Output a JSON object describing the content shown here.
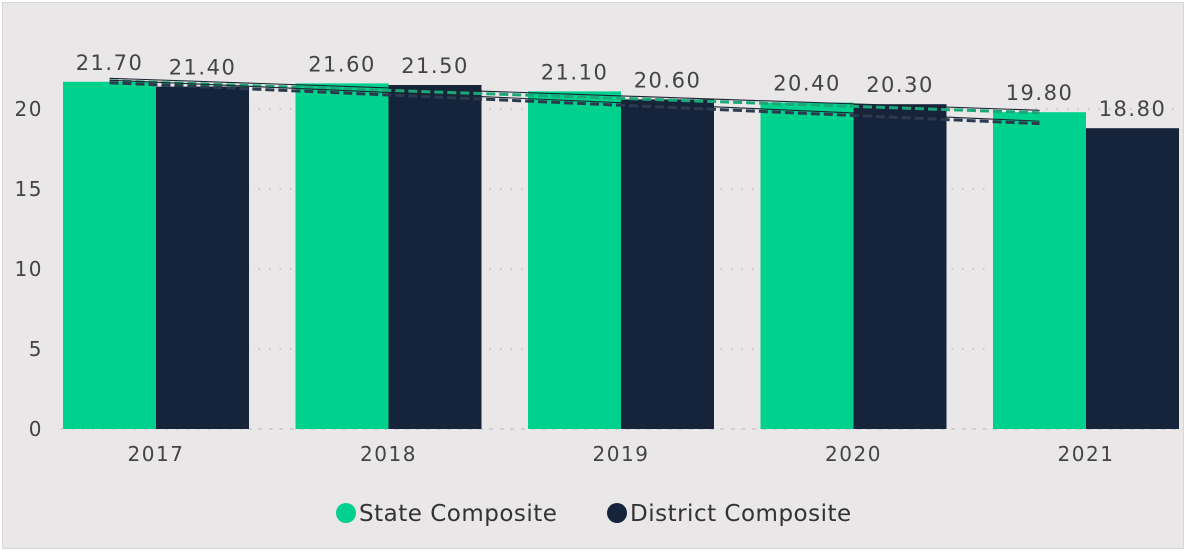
{
  "colors": {
    "state": "#00d18c",
    "district": "#15243b",
    "state_trend": "#1aa878",
    "district_trend": "#2b3a4f",
    "grid": "#b8b6b6",
    "background": "#e9e7e7"
  },
  "chart_data": {
    "type": "bar",
    "categories": [
      "2017",
      "2018",
      "2019",
      "2020",
      "2021"
    ],
    "series": [
      {
        "name": "State Composite",
        "values": [
          21.7,
          21.6,
          21.1,
          20.4,
          19.8
        ],
        "labels": [
          "21.70",
          "21.60",
          "21.10",
          "20.40",
          "19.80"
        ],
        "color": "#00d18c"
      },
      {
        "name": "District Composite",
        "values": [
          21.4,
          21.5,
          20.6,
          20.3,
          18.8
        ],
        "labels": [
          "21.40",
          "21.50",
          "20.60",
          "20.30",
          "18.80"
        ],
        "color": "#15243b"
      }
    ],
    "ylim": [
      0,
      22.5
    ],
    "yticks": [
      0,
      5,
      10,
      15,
      20
    ],
    "ytick_labels": [
      "0",
      "5",
      "10",
      "15",
      "20"
    ],
    "title": "",
    "xlabel": "",
    "ylabel": "",
    "trend_lines": true,
    "grid": "horizontal-dotted",
    "legend_position": "bottom-center"
  }
}
